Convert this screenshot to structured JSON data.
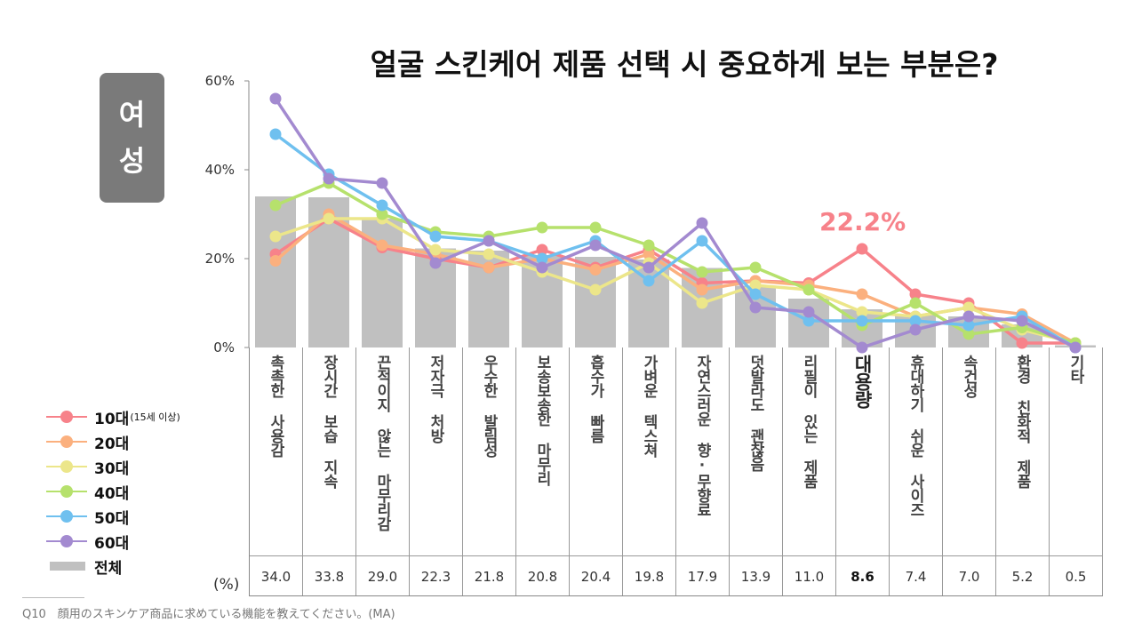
{
  "page": {
    "gender_label_1": "여",
    "gender_label_2": "성",
    "unit_label": "(%)",
    "footnote": "Q10　顔用のスキンケア商品に求めている機能を教えてください。(MA)"
  },
  "chart_data": {
    "type": "bar+line",
    "title": "얼굴 스킨케어 제품 선택 시 중요하게 보는 부분은?",
    "ylim": [
      0,
      60
    ],
    "yticks": [
      "0%",
      "20%",
      "40%",
      "60%"
    ],
    "ytick_values": [
      0,
      20,
      40,
      60
    ],
    "categories": [
      "촉촉한 사용감",
      "장시간 보습 지속",
      "끈적이지 않는 마무리감",
      "저자극 처방",
      "우수한 발림성",
      "보송보송한 마무리",
      "흡수가 빠름",
      "가벼운 텍스쳐",
      "자연스러운 향·무향료",
      "덧발라도 괜찮음",
      "리필이 있는 제품",
      "대용량",
      "휴대하기 쉬운 사이즈",
      "속건성",
      "환경 친화적 제품",
      "기타"
    ],
    "highlight_index": 11,
    "annotation": "22.2%",
    "total": {
      "name": "전체",
      "color": "#c0c0c0",
      "values": [
        34.0,
        33.8,
        29.0,
        22.3,
        21.8,
        20.8,
        20.4,
        19.8,
        17.9,
        13.9,
        11.0,
        8.6,
        7.4,
        7.0,
        5.2,
        0.5
      ],
      "labels": [
        "34.0",
        "33.8",
        "29.0",
        "22.3",
        "21.8",
        "20.8",
        "20.4",
        "19.8",
        "17.9",
        "13.9",
        "11.0",
        "8.6",
        "7.4",
        "7.0",
        "5.2",
        "0.5"
      ]
    },
    "series": [
      {
        "name": "10대",
        "note": "(15세 이상)",
        "color": "#f7828a",
        "values": [
          21,
          29,
          22.5,
          20,
          18,
          22,
          18,
          22,
          14.5,
          15,
          14.5,
          22.2,
          12,
          10,
          1,
          1
        ]
      },
      {
        "name": "20대",
        "note": "",
        "color": "#fbb07e",
        "values": [
          19.5,
          30,
          23,
          21,
          18,
          20,
          17.5,
          21,
          13,
          15,
          14,
          12,
          7,
          9,
          7.5,
          1
        ]
      },
      {
        "name": "30대",
        "note": "",
        "color": "#ece68a",
        "values": [
          25,
          29,
          29,
          22,
          21,
          17,
          13,
          19,
          10,
          14,
          13,
          8,
          7,
          9,
          4,
          1
        ]
      },
      {
        "name": "40대",
        "note": "",
        "color": "#b6e16c",
        "values": [
          32,
          37,
          30,
          26,
          25,
          27,
          27,
          23,
          17,
          18,
          13,
          5,
          10,
          3,
          4.5,
          1
        ]
      },
      {
        "name": "50대",
        "note": "",
        "color": "#6fc0ef",
        "values": [
          48,
          39,
          32,
          25,
          24,
          20,
          24,
          15,
          24,
          12,
          6,
          6,
          6,
          5,
          7,
          0
        ]
      },
      {
        "name": "60대",
        "note": "",
        "color": "#a38ad0",
        "values": [
          56,
          38,
          37,
          19,
          24,
          18,
          23,
          18,
          28,
          9,
          8,
          0,
          4,
          7,
          6,
          0
        ]
      }
    ],
    "legend_position": "bottom-left"
  }
}
